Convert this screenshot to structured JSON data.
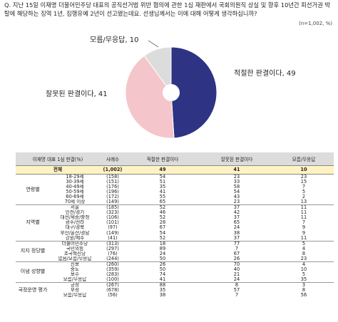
{
  "question": "Q. 지난 15일 이재명 더불어민주당 대표의 공직선거법 위반 혐의에 관한 1심 재판에서 국회의원직 상실 및 향후 10년간 피선거권 박탈에 해당하는 징역 1년, 집행유예 2년이 선고됐는데요. 선생님께서는 이에 대해 어떻게 생각하십니까?",
  "n_note": "(n=1,002, %)",
  "colors": {
    "approve": "#2e3383",
    "disapprove": "#f4c6cb",
    "dontknow": "#dcdcdc"
  },
  "chart_data": {
    "type": "pie",
    "slices": [
      {
        "name": "적절한 판결이다",
        "value": 49,
        "label": "적절한 판결이다, 49"
      },
      {
        "name": "잘못된 판결이다",
        "value": 41,
        "label": "잘못된 판결이다, 41"
      },
      {
        "name": "모름/무응답",
        "value": 10,
        "label": "모름/무응답, 10"
      }
    ]
  },
  "table": {
    "headers": [
      "이재명 대표 1심 판결(%)",
      "사례수",
      "적절한 판결이다",
      "잘못된 판결이다",
      "모름/무응답"
    ],
    "total": {
      "label": "전체",
      "n": "(1,002)",
      "values": [
        "49",
        "41",
        "10"
      ]
    },
    "groups": [
      {
        "name": "연령별",
        "rows": [
          {
            "label": "18-29세",
            "n": "(158)",
            "values": [
              "54",
              "23",
              "23"
            ]
          },
          {
            "label": "30-39세",
            "n": "(151)",
            "values": [
              "51",
              "33",
              "15"
            ]
          },
          {
            "label": "40-49세",
            "n": "(176)",
            "values": [
              "35",
              "58",
              "7"
            ]
          },
          {
            "label": "50-59세",
            "n": "(196)",
            "values": [
              "41",
              "54",
              "5"
            ]
          },
          {
            "label": "60-69세",
            "n": "(172)",
            "values": [
              "55",
              "43",
              "2"
            ]
          },
          {
            "label": "70세 이상",
            "n": "(149)",
            "values": [
              "65",
              "23",
              "13"
            ]
          }
        ]
      },
      {
        "name": "지역별",
        "rows": [
          {
            "label": "서울",
            "n": "(185)",
            "values": [
              "52",
              "37",
              "11"
            ]
          },
          {
            "label": "인천/경기",
            "n": "(323)",
            "values": [
              "46",
              "42",
              "11"
            ]
          },
          {
            "label": "대전/세종/충청",
            "n": "(106)",
            "values": [
              "52",
              "37",
              "11"
            ]
          },
          {
            "label": "광주/전라",
            "n": "(101)",
            "values": [
              "28",
              "65",
              "7"
            ]
          },
          {
            "label": "대구/경북",
            "n": "(97)",
            "values": [
              "67",
              "24",
              "9"
            ]
          },
          {
            "label": "부산/울산/경남",
            "n": "(149)",
            "values": [
              "54",
              "38",
              "9"
            ]
          },
          {
            "label": "강원/제주",
            "n": "(41)",
            "values": [
              "52",
              "37",
              "11"
            ]
          }
        ]
      },
      {
        "name": "지지 정당별",
        "rows": [
          {
            "label": "더불어민주당",
            "n": "(313)",
            "values": [
              "18",
              "77",
              "5"
            ]
          },
          {
            "label": "국민의힘",
            "n": "(297)",
            "values": [
              "89",
              "7",
              "4"
            ]
          },
          {
            "label": "조국혁신당",
            "n": "(76)",
            "values": [
              "24",
              "67",
              "8"
            ]
          },
          {
            "label": "없음/모름/무응답",
            "n": "(244)",
            "values": [
              "50",
              "26",
              "23"
            ]
          }
        ]
      },
      {
        "name": "이념 성향별",
        "rows": [
          {
            "label": "진보",
            "n": "(260)",
            "values": [
              "26",
              "70",
              "4"
            ]
          },
          {
            "label": "중도",
            "n": "(359)",
            "values": [
              "50",
              "40",
              "10"
            ]
          },
          {
            "label": "보수",
            "n": "(283)",
            "values": [
              "74",
              "21",
              "5"
            ]
          },
          {
            "label": "모름/무응답",
            "n": "(100)",
            "values": [
              "41",
              "24",
              "35"
            ]
          }
        ]
      },
      {
        "name": "국정운영 평가",
        "rows": [
          {
            "label": "긍정",
            "n": "(267)",
            "values": [
              "88",
              "8",
              "3"
            ]
          },
          {
            "label": "부정",
            "n": "(678)",
            "values": [
              "35",
              "57",
              "8"
            ]
          },
          {
            "label": "모름/무응답",
            "n": "(56)",
            "values": [
              "38",
              "7",
              "56"
            ]
          }
        ]
      }
    ]
  }
}
